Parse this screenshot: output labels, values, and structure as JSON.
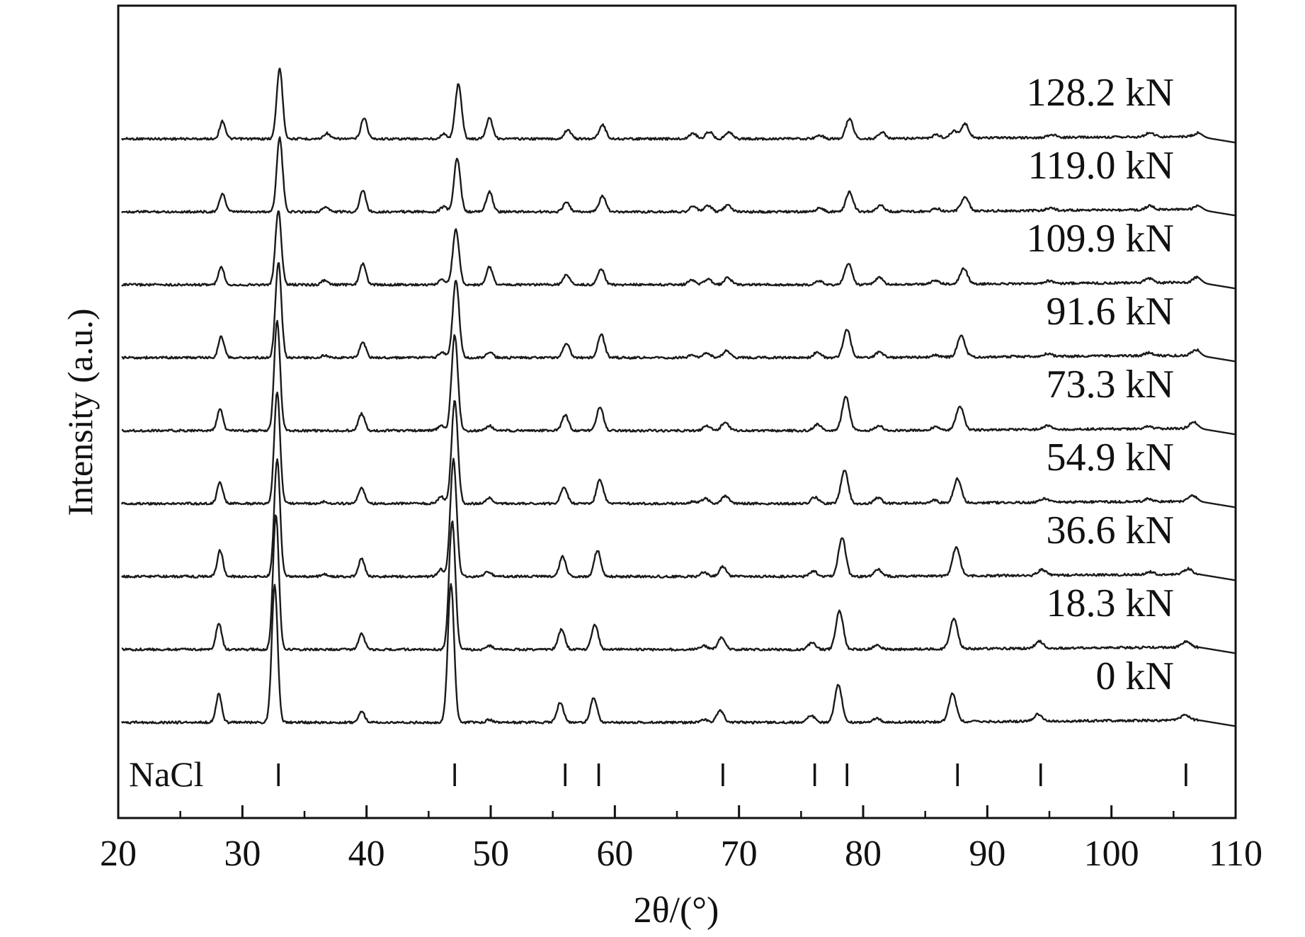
{
  "chart_data": {
    "type": "line",
    "xlabel": "2θ/(°)",
    "ylabel": "Intensity (a.u.)",
    "xlim": [
      20,
      110
    ],
    "x_ticks": [
      20,
      30,
      40,
      50,
      60,
      70,
      80,
      90,
      100,
      110
    ],
    "y_ticks": [],
    "grid": false,
    "legend": "none",
    "layout_note": "stacked/offset XRD patterns, each series labeled at right",
    "series": [
      {
        "name": "128.2 kN",
        "offset": 8,
        "peak_shift": 0.32,
        "peaks": [
          [
            28.4,
            0.25
          ],
          [
            33.0,
            1.0
          ],
          [
            36.8,
            0.08
          ],
          [
            39.8,
            0.3
          ],
          [
            46.2,
            0.07
          ],
          [
            47.4,
            0.78
          ],
          [
            49.9,
            0.3
          ],
          [
            56.2,
            0.13
          ],
          [
            59.0,
            0.2
          ],
          [
            66.3,
            0.08
          ],
          [
            67.6,
            0.1
          ],
          [
            69.2,
            0.1
          ],
          [
            76.5,
            0.05
          ],
          [
            78.9,
            0.28
          ],
          [
            81.5,
            0.09
          ],
          [
            85.9,
            0.05
          ],
          [
            87.3,
            0.1
          ],
          [
            88.2,
            0.2
          ],
          [
            95.2,
            0.04
          ],
          [
            103.1,
            0.06
          ],
          [
            107.0,
            0.05
          ]
        ]
      },
      {
        "name": "119.0 kN",
        "offset": 7,
        "peak_shift": 0.28,
        "peaks": [
          [
            28.4,
            0.26
          ],
          [
            33.0,
            1.05
          ],
          [
            36.7,
            0.07
          ],
          [
            39.7,
            0.3
          ],
          [
            46.2,
            0.07
          ],
          [
            47.3,
            0.75
          ],
          [
            49.9,
            0.28
          ],
          [
            56.1,
            0.13
          ],
          [
            59.0,
            0.22
          ],
          [
            66.3,
            0.08
          ],
          [
            67.5,
            0.09
          ],
          [
            69.1,
            0.1
          ],
          [
            76.5,
            0.05
          ],
          [
            78.9,
            0.28
          ],
          [
            81.4,
            0.09
          ],
          [
            85.9,
            0.04
          ],
          [
            88.2,
            0.2
          ],
          [
            95.1,
            0.04
          ],
          [
            103.1,
            0.06
          ],
          [
            107.0,
            0.05
          ]
        ]
      },
      {
        "name": "109.9 kN",
        "offset": 6,
        "peak_shift": 0.25,
        "peaks": [
          [
            28.3,
            0.25
          ],
          [
            32.9,
            1.05
          ],
          [
            36.6,
            0.06
          ],
          [
            39.7,
            0.3
          ],
          [
            46.1,
            0.08
          ],
          [
            47.2,
            0.78
          ],
          [
            49.9,
            0.25
          ],
          [
            56.1,
            0.14
          ],
          [
            58.9,
            0.22
          ],
          [
            66.2,
            0.07
          ],
          [
            67.5,
            0.08
          ],
          [
            69.1,
            0.1
          ],
          [
            76.4,
            0.06
          ],
          [
            78.8,
            0.3
          ],
          [
            81.3,
            0.1
          ],
          [
            85.8,
            0.05
          ],
          [
            88.1,
            0.22
          ],
          [
            95.0,
            0.04
          ],
          [
            103.0,
            0.06
          ],
          [
            106.9,
            0.07
          ]
        ]
      },
      {
        "name": "91.6 kN",
        "offset": 5,
        "peak_shift": 0.22,
        "peaks": [
          [
            28.3,
            0.3
          ],
          [
            32.9,
            1.35
          ],
          [
            36.6,
            0.03
          ],
          [
            39.7,
            0.22
          ],
          [
            46.1,
            0.08
          ],
          [
            47.2,
            1.1
          ],
          [
            49.9,
            0.08
          ],
          [
            56.1,
            0.2
          ],
          [
            58.9,
            0.33
          ],
          [
            66.2,
            0.03
          ],
          [
            67.4,
            0.07
          ],
          [
            69.0,
            0.1
          ],
          [
            76.3,
            0.08
          ],
          [
            78.7,
            0.4
          ],
          [
            81.3,
            0.08
          ],
          [
            85.8,
            0.03
          ],
          [
            87.9,
            0.3
          ],
          [
            94.9,
            0.04
          ],
          [
            103.0,
            0.04
          ],
          [
            106.8,
            0.08
          ]
        ]
      },
      {
        "name": "73.3 kN",
        "offset": 4,
        "peak_shift": 0.17,
        "peaks": [
          [
            28.2,
            0.3
          ],
          [
            32.8,
            1.55
          ],
          [
            39.6,
            0.24
          ],
          [
            46.0,
            0.07
          ],
          [
            47.1,
            1.35
          ],
          [
            49.9,
            0.07
          ],
          [
            56.0,
            0.22
          ],
          [
            58.8,
            0.34
          ],
          [
            67.4,
            0.07
          ],
          [
            68.9,
            0.13
          ],
          [
            76.3,
            0.09
          ],
          [
            78.6,
            0.48
          ],
          [
            81.3,
            0.07
          ],
          [
            85.8,
            0.04
          ],
          [
            87.8,
            0.34
          ],
          [
            94.8,
            0.05
          ],
          [
            103.0,
            0.03
          ],
          [
            106.6,
            0.09
          ]
        ]
      },
      {
        "name": "54.9 kN",
        "offset": 3,
        "peak_shift": 0.13,
        "peaks": [
          [
            28.2,
            0.3
          ],
          [
            32.8,
            1.57
          ],
          [
            36.6,
            0.03
          ],
          [
            39.6,
            0.23
          ],
          [
            46.0,
            0.1
          ],
          [
            47.1,
            1.45
          ],
          [
            49.9,
            0.08
          ],
          [
            55.9,
            0.23
          ],
          [
            58.8,
            0.34
          ],
          [
            66.3,
            0.03
          ],
          [
            67.3,
            0.07
          ],
          [
            68.9,
            0.11
          ],
          [
            76.1,
            0.09
          ],
          [
            78.5,
            0.47
          ],
          [
            81.2,
            0.08
          ],
          [
            85.7,
            0.04
          ],
          [
            87.6,
            0.34
          ],
          [
            94.6,
            0.05
          ],
          [
            103.0,
            0.04
          ],
          [
            106.5,
            0.09
          ]
        ]
      },
      {
        "name": "36.6 kN",
        "offset": 2,
        "peak_shift": 0.09,
        "peaks": [
          [
            28.2,
            0.37
          ],
          [
            32.8,
            1.65
          ],
          [
            36.6,
            0.03
          ],
          [
            39.6,
            0.25
          ],
          [
            46.0,
            0.1
          ],
          [
            47.0,
            1.65
          ],
          [
            49.8,
            0.07
          ],
          [
            55.8,
            0.28
          ],
          [
            58.6,
            0.37
          ],
          [
            67.2,
            0.06
          ],
          [
            68.7,
            0.14
          ],
          [
            76.0,
            0.08
          ],
          [
            78.3,
            0.55
          ],
          [
            81.2,
            0.1
          ],
          [
            87.5,
            0.4
          ],
          [
            94.4,
            0.08
          ],
          [
            103.1,
            0.04
          ],
          [
            106.2,
            0.08
          ]
        ]
      },
      {
        "name": "18.3 kN",
        "offset": 1,
        "peak_shift": 0.05,
        "peaks": [
          [
            28.1,
            0.37
          ],
          [
            32.7,
            1.9
          ],
          [
            39.6,
            0.23
          ],
          [
            46.9,
            1.82
          ],
          [
            49.9,
            0.05
          ],
          [
            55.7,
            0.28
          ],
          [
            58.4,
            0.35
          ],
          [
            67.2,
            0.05
          ],
          [
            68.6,
            0.17
          ],
          [
            75.9,
            0.1
          ],
          [
            78.1,
            0.55
          ],
          [
            81.1,
            0.06
          ],
          [
            87.3,
            0.43
          ],
          [
            94.2,
            0.1
          ],
          [
            106.0,
            0.08
          ]
        ]
      },
      {
        "name": "0 kN",
        "offset": 0,
        "peak_shift": 0.0,
        "peaks": [
          [
            28.1,
            0.4
          ],
          [
            32.6,
            1.95
          ],
          [
            39.6,
            0.16
          ],
          [
            46.8,
            1.95
          ],
          [
            49.9,
            0.04
          ],
          [
            55.6,
            0.28
          ],
          [
            58.3,
            0.35
          ],
          [
            67.2,
            0.04
          ],
          [
            68.5,
            0.17
          ],
          [
            75.8,
            0.1
          ],
          [
            78.0,
            0.53
          ],
          [
            81.1,
            0.06
          ],
          [
            87.2,
            0.4
          ],
          [
            94.1,
            0.1
          ],
          [
            105.9,
            0.08
          ]
        ]
      }
    ],
    "reference": {
      "name": "NaCl",
      "positions": [
        32.9,
        47.1,
        56.0,
        58.7,
        68.7,
        76.1,
        78.7,
        87.6,
        94.3,
        106.0
      ]
    }
  }
}
